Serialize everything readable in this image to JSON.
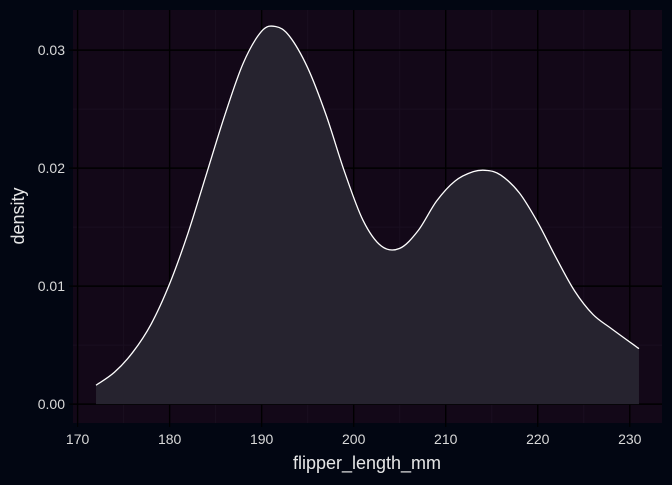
{
  "colors": {
    "figure_background": "#020612",
    "panel_background": "#130818",
    "grid_major": "#000000",
    "grid_minor": "#1a0f20",
    "curve": "#ffffff",
    "fill": "#26232f",
    "text": "#d9d9d9"
  },
  "chart_data": {
    "type": "area",
    "title": "",
    "xlabel": "flipper_length_mm",
    "ylabel": "density",
    "xlim": [
      169.5,
      233.5
    ],
    "ylim": [
      -0.0016,
      0.0334
    ],
    "grid": true,
    "legend": "none",
    "x_ticks": [
      170,
      180,
      190,
      200,
      210,
      220,
      230
    ],
    "x_tick_labels": [
      "170",
      "180",
      "190",
      "200",
      "210",
      "220",
      "230"
    ],
    "y_ticks": [
      0.0,
      0.01,
      0.02,
      0.03
    ],
    "y_tick_labels": [
      "0.00",
      "0.01",
      "0.02",
      "0.03"
    ],
    "series": [
      {
        "x": [
          172,
          174,
          176,
          178,
          180,
          182,
          184,
          186,
          188,
          190,
          191.5,
          193,
          195,
          197,
          199,
          201,
          203,
          205,
          207,
          209,
          211,
          213,
          214.5,
          216,
          218,
          220,
          222,
          224,
          226,
          228,
          231
        ],
        "y": [
          0.0016,
          0.0027,
          0.0044,
          0.0068,
          0.0102,
          0.0145,
          0.0195,
          0.0245,
          0.0289,
          0.0316,
          0.032,
          0.0312,
          0.0285,
          0.0245,
          0.0197,
          0.0156,
          0.0134,
          0.0132,
          0.0147,
          0.0172,
          0.0189,
          0.0197,
          0.0198,
          0.0194,
          0.0179,
          0.0154,
          0.0124,
          0.0096,
          0.0076,
          0.0064,
          0.0047
        ]
      }
    ]
  }
}
